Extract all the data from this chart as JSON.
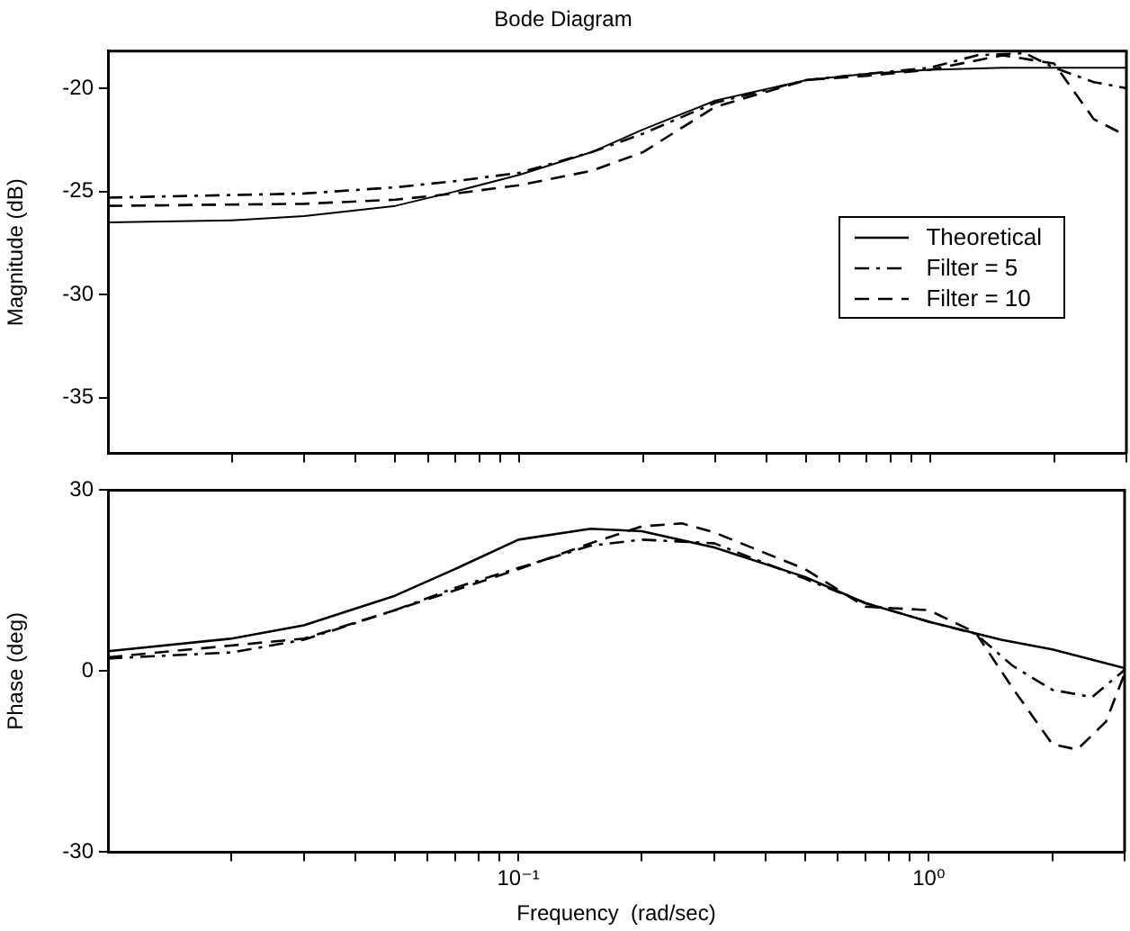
{
  "chart_data": [
    {
      "type": "line",
      "title": "Bode Diagram",
      "ylabel": "Magnitude (dB)",
      "log": "x",
      "xlim": [
        0.01,
        3
      ],
      "ylim": [
        -37.7,
        -18.2
      ],
      "xticks": [
        {
          "value": 0.02,
          "label": null
        },
        {
          "value": 0.03,
          "label": null
        },
        {
          "value": 0.04,
          "label": null
        },
        {
          "value": 0.05,
          "label": null
        },
        {
          "value": 0.06,
          "label": null
        },
        {
          "value": 0.07,
          "label": null
        },
        {
          "value": 0.08,
          "label": null
        },
        {
          "value": 0.09,
          "label": null
        },
        {
          "value": 0.1,
          "label": null
        },
        {
          "value": 0.2,
          "label": null
        },
        {
          "value": 0.3,
          "label": null
        },
        {
          "value": 0.4,
          "label": null
        },
        {
          "value": 0.5,
          "label": null
        },
        {
          "value": 0.6,
          "label": null
        },
        {
          "value": 0.7,
          "label": null
        },
        {
          "value": 0.8,
          "label": null
        },
        {
          "value": 0.9,
          "label": null
        },
        {
          "value": 1,
          "label": null
        },
        {
          "value": 2,
          "label": null
        },
        {
          "value": 3,
          "label": null
        }
      ],
      "yticks": [
        -35,
        -30,
        -25,
        -20
      ],
      "grid": false,
      "legend": "right",
      "tick_labels": "y",
      "marker": "none",
      "series": [
        {
          "name": "Theoretical",
          "color": "#000000",
          "line_style": "solid",
          "x": [
            0.01,
            0.02,
            0.03,
            0.05,
            0.07,
            0.1,
            0.15,
            0.2,
            0.3,
            0.5,
            0.7,
            1,
            1.5,
            2,
            3
          ],
          "values": [
            -26.5,
            -26.4,
            -26.2,
            -25.7,
            -25.0,
            -24.2,
            -23.1,
            -22.0,
            -20.6,
            -19.6,
            -19.3,
            -19.1,
            -19.0,
            -19.0,
            -19.0
          ]
        },
        {
          "name": "Filter = 5",
          "color": "#000000",
          "line_style": "dashdot",
          "x": [
            0.01,
            0.03,
            0.05,
            0.07,
            0.1,
            0.15,
            0.2,
            0.3,
            0.5,
            0.7,
            1,
            1.3,
            1.7,
            2,
            2.5,
            3
          ],
          "values": [
            -25.3,
            -25.1,
            -24.8,
            -24.5,
            -24.1,
            -23.1,
            -22.2,
            -20.7,
            -19.6,
            -19.3,
            -19.0,
            -18.4,
            -18.3,
            -19.0,
            -19.7,
            -20.0
          ]
        },
        {
          "name": "Filter = 10",
          "color": "#000000",
          "line_style": "dashed",
          "x": [
            0.01,
            0.03,
            0.05,
            0.07,
            0.1,
            0.15,
            0.2,
            0.3,
            0.5,
            0.7,
            1,
            1.5,
            2,
            2.5,
            3
          ],
          "values": [
            -25.7,
            -25.6,
            -25.4,
            -25.1,
            -24.7,
            -24.0,
            -23.1,
            -20.9,
            -19.6,
            -19.4,
            -19.1,
            -18.4,
            -18.8,
            -21.5,
            -22.3
          ]
        }
      ]
    },
    {
      "type": "line",
      "xlabel": "Frequency  (rad/sec)",
      "ylabel": "Phase (deg)",
      "log": "x",
      "xlim": [
        0.01,
        3
      ],
      "ylim": [
        -30,
        30
      ],
      "xticks": [
        {
          "value": 0.02,
          "label": null
        },
        {
          "value": 0.03,
          "label": null
        },
        {
          "value": 0.04,
          "label": null
        },
        {
          "value": 0.05,
          "label": null
        },
        {
          "value": 0.06,
          "label": null
        },
        {
          "value": 0.07,
          "label": null
        },
        {
          "value": 0.08,
          "label": null
        },
        {
          "value": 0.09,
          "label": null
        },
        {
          "value": 0.1,
          "label": "10⁻¹"
        },
        {
          "value": 0.2,
          "label": null
        },
        {
          "value": 0.3,
          "label": null
        },
        {
          "value": 0.4,
          "label": null
        },
        {
          "value": 0.5,
          "label": null
        },
        {
          "value": 0.6,
          "label": null
        },
        {
          "value": 0.7,
          "label": null
        },
        {
          "value": 0.8,
          "label": null
        },
        {
          "value": 0.9,
          "label": null
        },
        {
          "value": 1,
          "label": "10⁰"
        },
        {
          "value": 2,
          "label": null
        },
        {
          "value": 3,
          "label": null
        }
      ],
      "yticks": [
        -30,
        0,
        30
      ],
      "grid": false,
      "marker": "none",
      "series": [
        {
          "color": "#000000",
          "line_style": "solid",
          "x": [
            0.01,
            0.02,
            0.03,
            0.05,
            0.07,
            0.1,
            0.15,
            0.2,
            0.3,
            0.5,
            0.7,
            1,
            1.5,
            2,
            3
          ],
          "values": [
            3.3,
            5.4,
            7.6,
            12.5,
            16.9,
            21.8,
            23.6,
            23.2,
            20.5,
            15.6,
            11.3,
            8.2,
            5.2,
            3.6,
            0.5
          ]
        },
        {
          "color": "#000000",
          "line_style": "dashdot",
          "x": [
            0.01,
            0.02,
            0.03,
            0.05,
            0.07,
            0.1,
            0.15,
            0.2,
            0.3,
            0.5,
            0.7,
            1,
            1.3,
            1.6,
            2,
            2.5,
            3
          ],
          "values": [
            2.1,
            3.1,
            5.2,
            10.1,
            13.8,
            17.1,
            20.8,
            21.8,
            21.2,
            15.3,
            11.3,
            8.2,
            6.2,
            0.9,
            -3.1,
            -4.3,
            0.2
          ]
        },
        {
          "color": "#000000",
          "line_style": "dashed",
          "x": [
            0.01,
            0.03,
            0.05,
            0.1,
            0.15,
            0.2,
            0.25,
            0.3,
            0.5,
            0.7,
            1,
            1.3,
            1.6,
            2,
            2.3,
            2.7,
            3
          ],
          "values": [
            2.3,
            5.4,
            10.1,
            16.9,
            21.2,
            24.0,
            24.5,
            23.0,
            16.9,
            10.7,
            10.1,
            6.4,
            -2.8,
            -12.1,
            -13,
            -8.4,
            -0.4
          ]
        }
      ]
    }
  ]
}
